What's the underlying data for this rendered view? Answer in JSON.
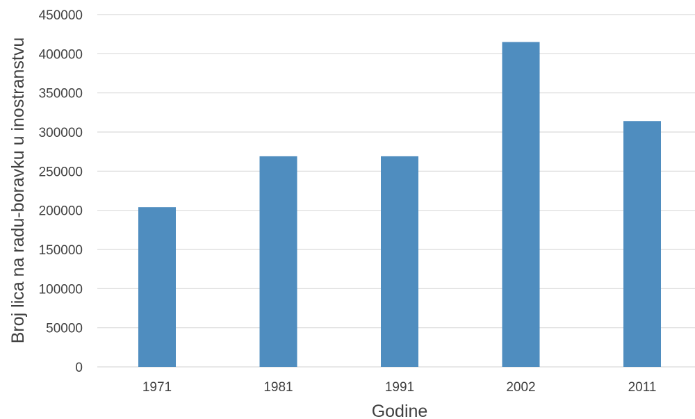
{
  "chart_data": {
    "type": "bar",
    "categories": [
      "1971",
      "1981",
      "1991",
      "2002",
      "2011"
    ],
    "series": [
      {
        "values": [
          204000,
          269000,
          269000,
          415000,
          314000
        ]
      }
    ],
    "title": "",
    "xlabel": "Godine",
    "ylabel": "Broj lica na radu-boravku u inostranstvu",
    "ylim": [
      0,
      450000
    ],
    "yticks": [
      "0",
      "50000",
      "100000",
      "150000",
      "200000",
      "250000",
      "300000",
      "350000",
      "400000",
      "450000"
    ],
    "grid": true,
    "legend": "none",
    "bar_color": "#4f8dbf"
  }
}
